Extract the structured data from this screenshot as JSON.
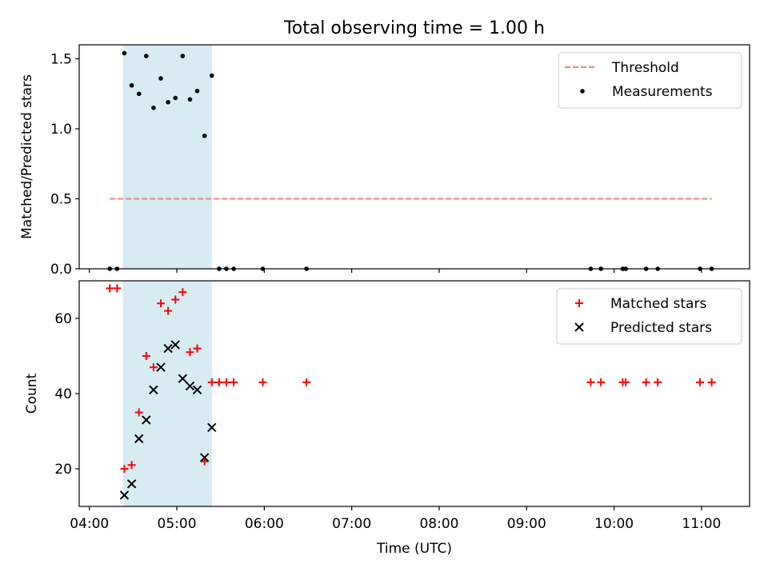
{
  "chart_data": [
    {
      "type": "scatter",
      "title": "Total observing time = 1.00 h",
      "xlabel": "",
      "ylabel": "Matched/Predicted stars",
      "xlim": [
        "03:53",
        "11:33"
      ],
      "ylim": [
        0,
        1.6
      ],
      "x_ticks": [
        "04:00",
        "05:00",
        "06:00",
        "07:00",
        "08:00",
        "09:00",
        "10:00",
        "11:00"
      ],
      "y_ticks": [
        0.0,
        0.5,
        1.0,
        1.5
      ],
      "y_tick_labels": [
        "0.0",
        "0.5",
        "1.0",
        "1.5"
      ],
      "shaded_region": {
        "x_start": "04:23",
        "x_end": "05:24",
        "color": "#add8e6"
      },
      "legend": "top-right",
      "series": [
        {
          "name": "Threshold",
          "kind": "line",
          "style": "dashed",
          "color": "#f08080",
          "x": [
            "04:14",
            "11:07"
          ],
          "y": [
            0.5,
            0.5
          ]
        },
        {
          "name": "Measurements",
          "kind": "scatter",
          "marker": "dot",
          "color": "#000000",
          "x": [
            "04:14",
            "04:19",
            "04:24",
            "04:29",
            "04:34",
            "04:39",
            "04:44",
            "04:49",
            "04:54",
            "04:59",
            "05:04",
            "05:09",
            "05:14",
            "05:19",
            "05:24",
            "05:29",
            "05:34",
            "05:39",
            "05:59",
            "06:29",
            "09:44",
            "09:51",
            "10:06",
            "10:08",
            "10:22",
            "10:30",
            "10:59",
            "11:07"
          ],
          "y": [
            0,
            0,
            1.54,
            1.31,
            1.25,
            1.52,
            1.15,
            1.36,
            1.19,
            1.22,
            1.52,
            1.21,
            1.27,
            0.95,
            1.38,
            0,
            0,
            0,
            0,
            0,
            0,
            0,
            0,
            0,
            0,
            0,
            0,
            0
          ]
        }
      ]
    },
    {
      "type": "scatter",
      "title": "",
      "xlabel": "Time (UTC)",
      "ylabel": "Count",
      "xlim": [
        "03:53",
        "11:33"
      ],
      "ylim": [
        10,
        70
      ],
      "x_ticks": [
        "04:00",
        "05:00",
        "06:00",
        "07:00",
        "08:00",
        "09:00",
        "10:00",
        "11:00"
      ],
      "y_ticks": [
        20,
        40,
        60
      ],
      "y_tick_labels": [
        "20",
        "40",
        "60"
      ],
      "shaded_region": {
        "x_start": "04:23",
        "x_end": "05:24",
        "color": "#add8e6"
      },
      "legend": "top-right",
      "series": [
        {
          "name": "Matched stars",
          "kind": "scatter",
          "marker": "plus",
          "color": "#ff0000",
          "x": [
            "04:14",
            "04:19",
            "04:24",
            "04:29",
            "04:34",
            "04:39",
            "04:44",
            "04:49",
            "04:54",
            "04:59",
            "05:04",
            "05:09",
            "05:14",
            "05:19",
            "05:24",
            "05:29",
            "05:34",
            "05:39",
            "05:59",
            "06:29",
            "09:44",
            "09:51",
            "10:06",
            "10:08",
            "10:22",
            "10:30",
            "10:59",
            "11:07"
          ],
          "y": [
            68,
            68,
            20,
            21,
            35,
            50,
            47,
            64,
            62,
            65,
            67,
            51,
            52,
            22,
            43,
            43,
            43,
            43,
            43,
            43,
            43,
            43,
            43,
            43,
            43,
            43,
            43,
            43
          ]
        },
        {
          "name": "Predicted stars",
          "kind": "scatter",
          "marker": "x",
          "color": "#000000",
          "x": [
            "04:24",
            "04:29",
            "04:34",
            "04:39",
            "04:44",
            "04:49",
            "04:54",
            "04:59",
            "05:04",
            "05:09",
            "05:14",
            "05:19",
            "05:24"
          ],
          "y": [
            13,
            16,
            28,
            33,
            41,
            47,
            52,
            53,
            44,
            42,
            41,
            23,
            31
          ]
        }
      ]
    }
  ]
}
